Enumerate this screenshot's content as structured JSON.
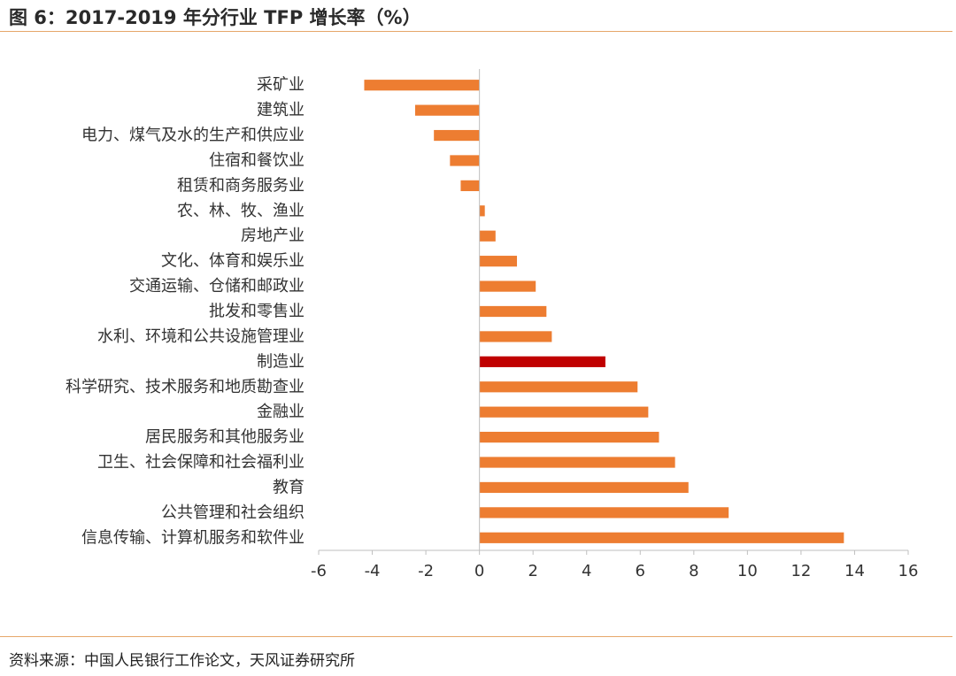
{
  "title": "图 6：2017-2019 年分行业 TFP 增长率（%）",
  "source": "资料来源：中国人民银行工作论文，天风证券研究所",
  "colors": {
    "bar": "#ED7D31",
    "highlight": "#C00000",
    "axis": "#BFBFBF",
    "text": "#333333",
    "rule": "#E6A76A"
  },
  "chart_data": {
    "type": "bar",
    "orientation": "horizontal",
    "categories": [
      "采矿业",
      "建筑业",
      "电力、煤气及水的生产和供应业",
      "住宿和餐饮业",
      "租赁和商务服务业",
      "农、林、牧、渔业",
      "房地产业",
      "文化、体育和娱乐业",
      "交通运输、仓储和邮政业",
      "批发和零售业",
      "水利、环境和公共设施管理业",
      "制造业",
      "科学研究、技术服务和地质勘查业",
      "金融业",
      "居民服务和其他服务业",
      "卫生、社会保障和社会福利业",
      "教育",
      "公共管理和社会组织",
      "信息传输、计算机服务和软件业"
    ],
    "values": [
      -4.3,
      -2.4,
      -1.7,
      -1.1,
      -0.7,
      0.2,
      0.6,
      1.4,
      2.1,
      2.5,
      2.7,
      4.7,
      5.9,
      6.3,
      6.7,
      7.3,
      7.8,
      9.3,
      13.6
    ],
    "highlight_category": "制造业",
    "xlim": [
      -6,
      16
    ],
    "xticks": [
      "-6",
      "-4",
      "-2",
      "0",
      "2",
      "4",
      "6",
      "8",
      "10",
      "12",
      "14",
      "16"
    ],
    "grid": false,
    "legend": "none"
  }
}
